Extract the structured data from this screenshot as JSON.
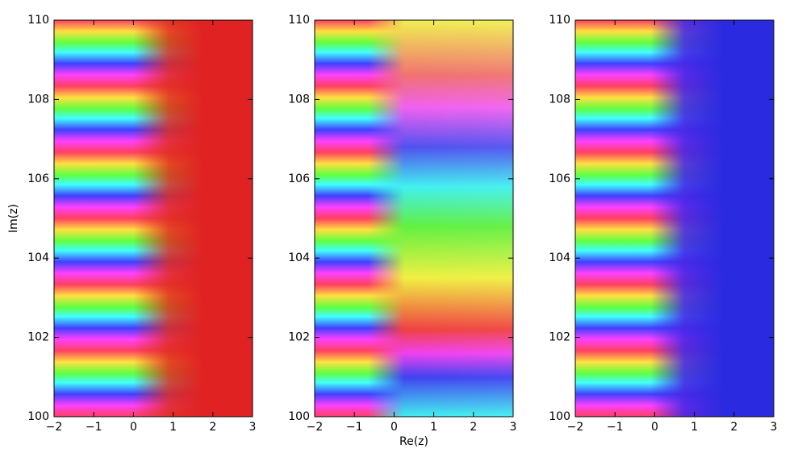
{
  "chart_data": [
    {
      "type": "domain-coloring",
      "ylabel": "Im(z)",
      "xlim": [
        -2,
        3
      ],
      "ylim": [
        100,
        110
      ],
      "xticks": [
        {
          "value": -2,
          "label": "−2"
        },
        {
          "value": -1,
          "label": "−1"
        },
        0,
        1,
        2,
        3
      ],
      "yticks": [
        100,
        102,
        104,
        106,
        108,
        110
      ]
    },
    {
      "type": "domain-coloring",
      "xlabel": "Re(z)",
      "xlim": [
        -2,
        3
      ],
      "ylim": [
        100,
        110
      ],
      "xticks": [
        {
          "value": -2,
          "label": "−2"
        },
        {
          "value": -1,
          "label": "−1"
        },
        0,
        1,
        2,
        3
      ],
      "yticks": [
        100,
        102,
        104,
        106,
        108,
        110
      ]
    },
    {
      "type": "domain-coloring",
      "xlim": [
        -2,
        3
      ],
      "ylim": [
        100,
        110
      ],
      "xticks": [
        {
          "value": -2,
          "label": "−2"
        },
        {
          "value": -1,
          "label": "−1"
        },
        0,
        1,
        2,
        3
      ],
      "yticks": [
        100,
        102,
        104,
        106,
        108,
        110
      ]
    }
  ]
}
